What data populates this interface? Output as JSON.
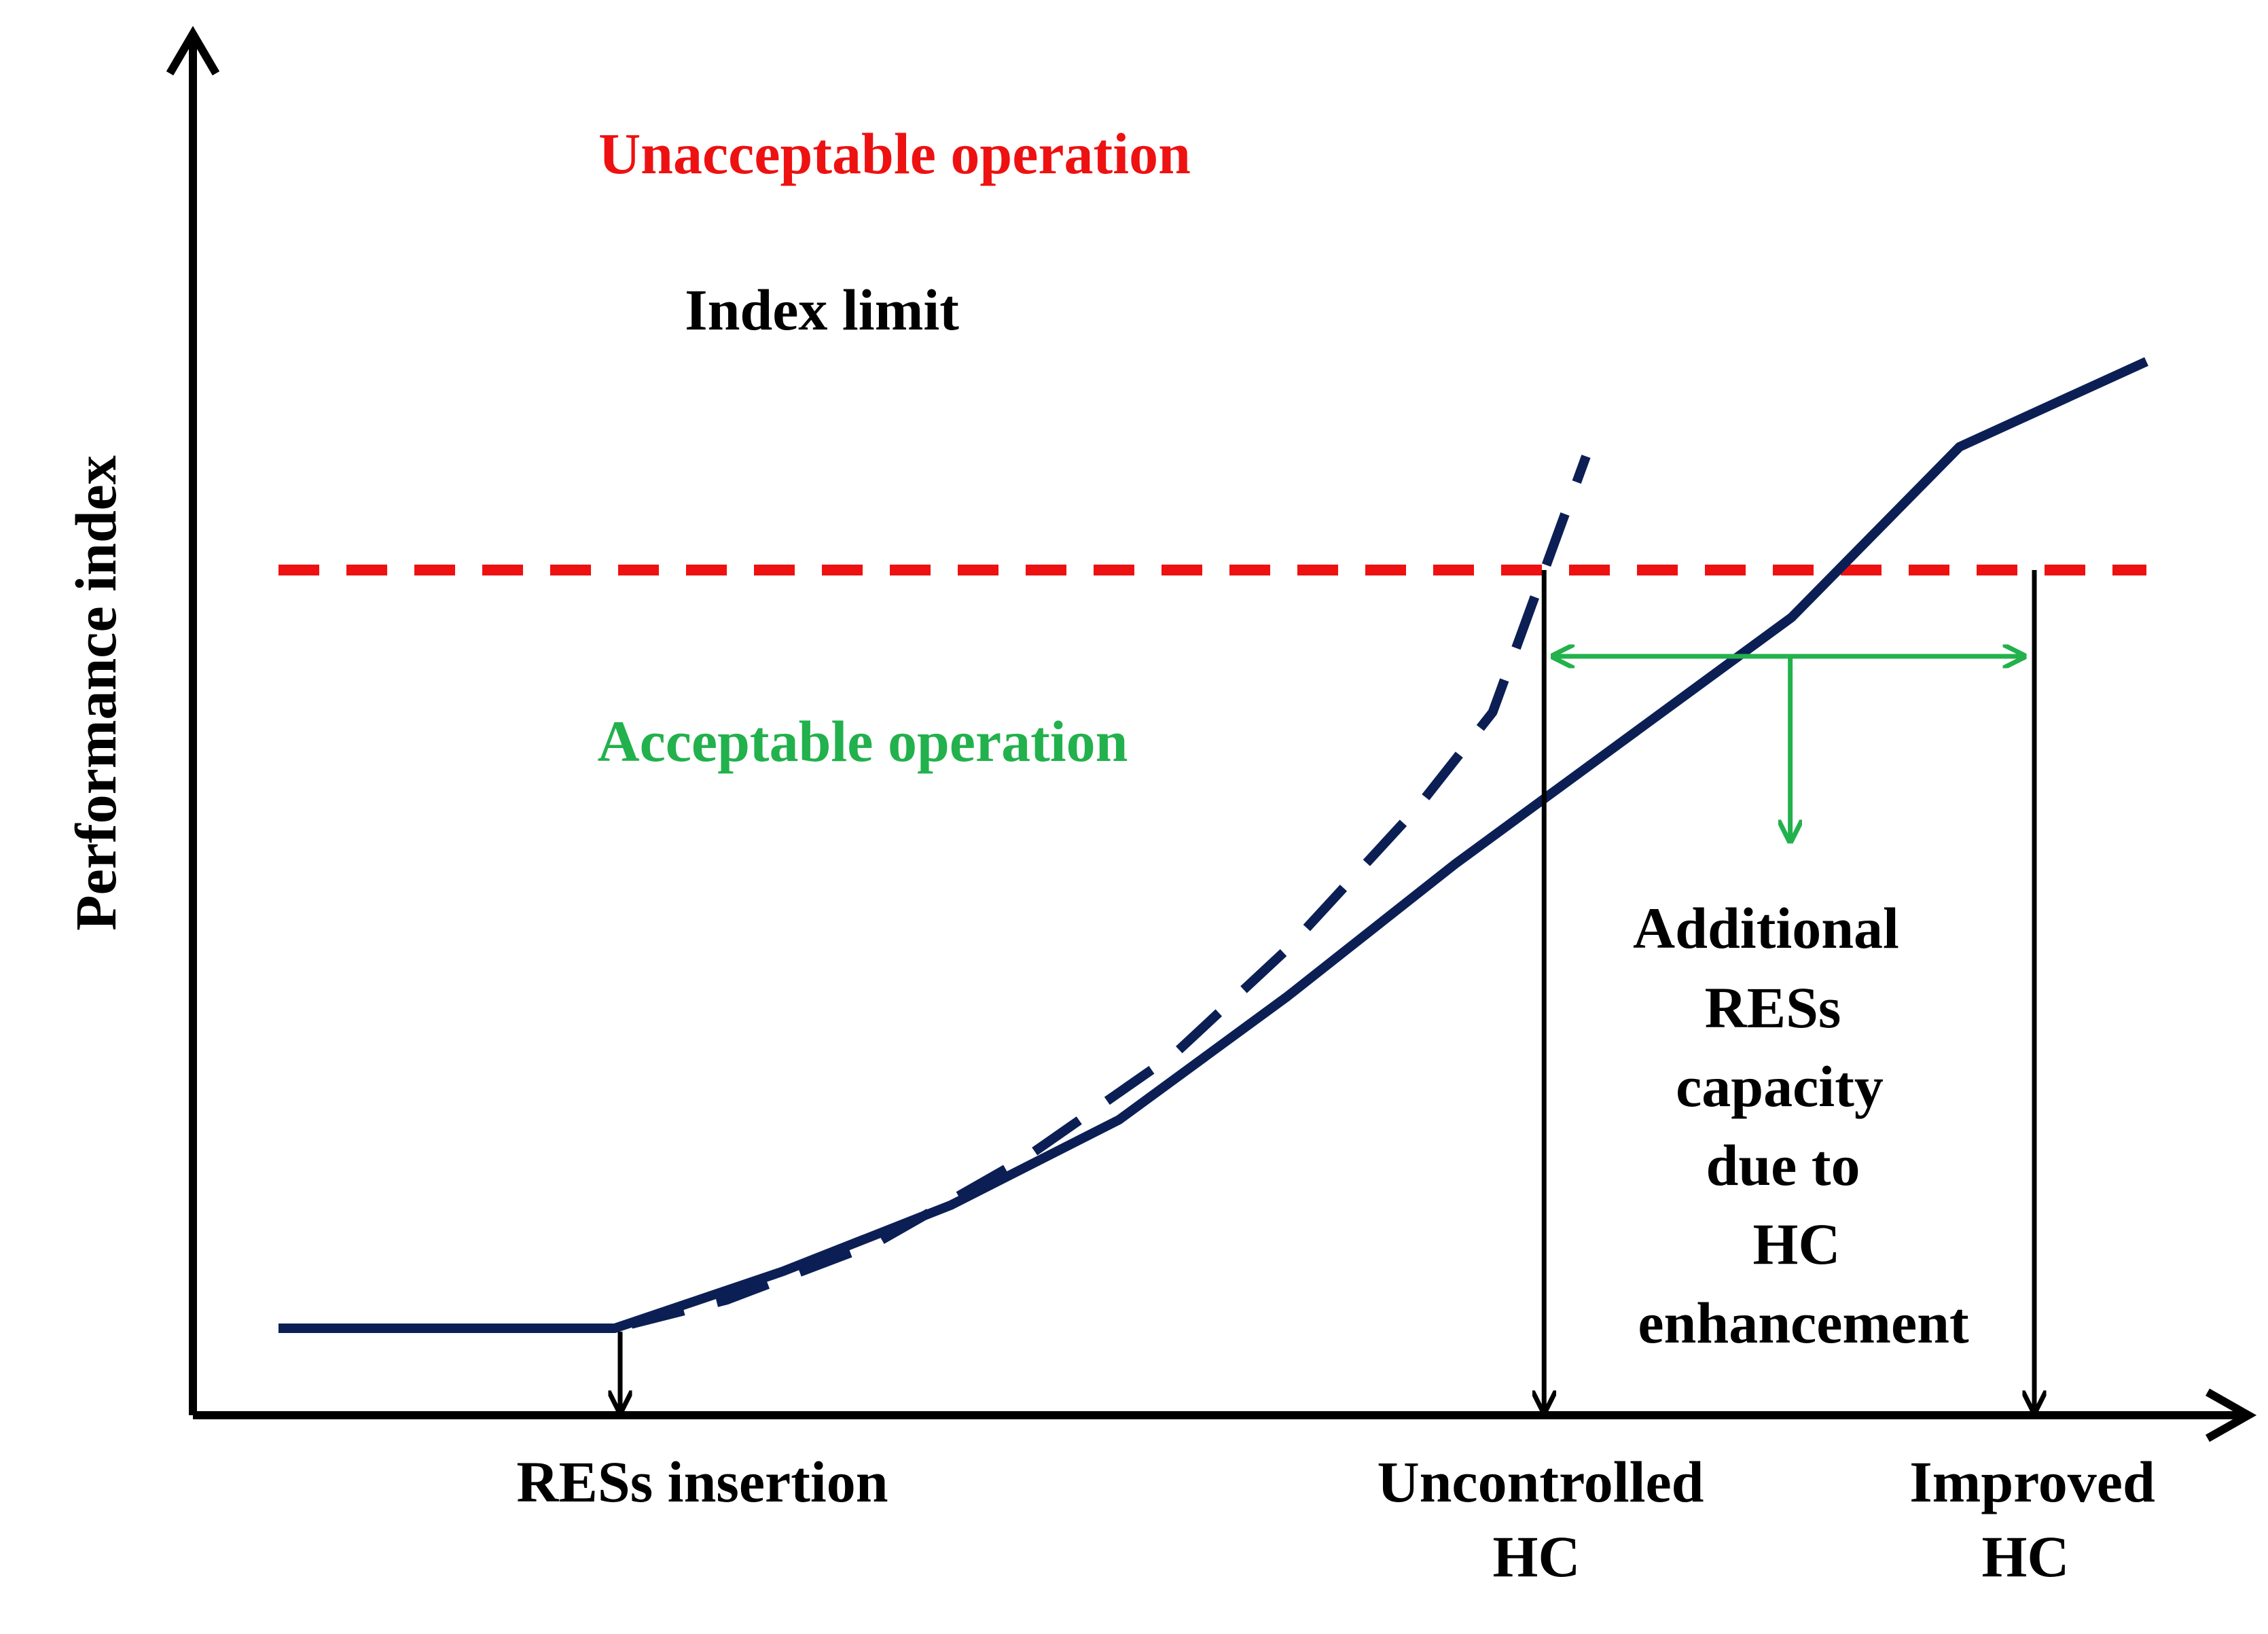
{
  "chart_data": {
    "type": "line",
    "ylabel": "Performance index",
    "xlabel": "",
    "regions": {
      "unacceptable": "Unacceptable operation",
      "acceptable": "Acceptable operation"
    },
    "index_limit": {
      "label": "Index limit",
      "value": 0.8
    },
    "series": [
      {
        "style": "dashed",
        "x": [
          0.0,
          0.18,
          0.24,
          0.32,
          0.4,
          0.48,
          0.54,
          0.61,
          0.65,
          0.7
        ],
        "y": [
          0.0,
          0.0,
          0.03,
          0.09,
          0.18,
          0.29,
          0.4,
          0.55,
          0.65,
          0.92
        ]
      },
      {
        "style": "solid",
        "x": [
          0.0,
          0.18,
          0.27,
          0.36,
          0.45,
          0.54,
          0.63,
          0.72,
          0.81,
          0.9,
          1.0
        ],
        "y": [
          0.0,
          0.0,
          0.06,
          0.13,
          0.22,
          0.35,
          0.49,
          0.62,
          0.75,
          0.93,
          1.02
        ]
      }
    ],
    "markers": [
      {
        "label": "RESs insertion",
        "x": 0.18
      },
      {
        "label": "Uncontrolled HC",
        "lines": [
          "Uncontrolled",
          "HC"
        ],
        "x": 0.675
      },
      {
        "label": "Improved HC",
        "lines": [
          "Improved",
          "HC"
        ],
        "x": 0.94
      }
    ],
    "annotation": {
      "lines": [
        "Additional",
        "RESs",
        "capacity",
        "due to",
        "HC",
        "enhancement"
      ]
    },
    "colors": {
      "curve": "#0c1f55",
      "limit": "#ee1111",
      "unacceptable": "#ee1111",
      "acceptable": "#22b14c",
      "arrows": "#22b14c",
      "axes": "#000000"
    }
  }
}
